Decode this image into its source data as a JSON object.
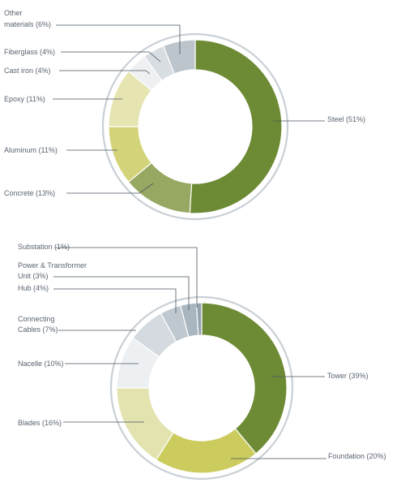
{
  "chart_data": [
    {
      "type": "pie",
      "donut": true,
      "categories": [
        "Steel",
        "Concrete",
        "Aluminum",
        "Epoxy",
        "Cast iron",
        "Fiberglass",
        "Other materials"
      ],
      "values": [
        51,
        13,
        11,
        11,
        4,
        4,
        6
      ],
      "labels": [
        "Steel (51%)",
        "Concrete (13%)",
        "Aluminum (11%)",
        "Epoxy (11%)",
        "Cast iron (4%)",
        "Fiberglass (4%)",
        "Other materials (6%)"
      ],
      "colors": [
        "#6d8a35",
        "#97a862",
        "#d3d37a",
        "#e6e5b2",
        "#eef0f2",
        "#d8dde2",
        "#bcc5cc"
      ]
    },
    {
      "type": "pie",
      "donut": true,
      "categories": [
        "Tower",
        "Foundation",
        "Blades",
        "Nacelle",
        "Connecting Cables",
        "Hub",
        "Power & Transformer Unit",
        "Substation"
      ],
      "values": [
        39,
        20,
        16,
        10,
        7,
        4,
        3,
        1
      ],
      "labels": [
        "Tower (39%)",
        "Foundation (20%)",
        "Blades (16%)",
        "Nacelle (10%)",
        "Connecting Cables (7%)",
        "Hub (4%)",
        "Power & Transformer Unit (3%)",
        "Substation (1%)"
      ],
      "colors": [
        "#6d8a35",
        "#cbcb5e",
        "#e3e3b0",
        "#edf0f2",
        "#d4dae0",
        "#bfc8cf",
        "#a9b5bf",
        "#95a3ae"
      ]
    }
  ]
}
